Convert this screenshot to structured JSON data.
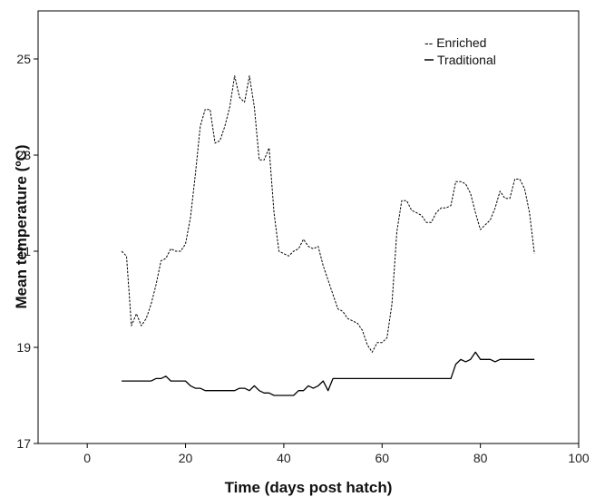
{
  "chart_data": {
    "type": "line",
    "xlabel": "Time (days post hatch)",
    "ylabel": "Mean temperature (ºC)",
    "xlim": [
      -10,
      100
    ],
    "ylim": [
      17,
      26
    ],
    "xticks": [
      0,
      20,
      40,
      60,
      80,
      100
    ],
    "yticks": [
      17,
      19,
      21,
      23,
      25
    ],
    "grid": false,
    "legend_position": "top-right",
    "series": [
      {
        "name": "Enriched",
        "legend_label": "-- Enriched",
        "style": "dashed",
        "color": "#000000",
        "x": [
          7,
          8,
          9,
          10,
          11,
          12,
          13,
          14,
          15,
          16,
          17,
          18,
          19,
          20,
          21,
          22,
          23,
          24,
          25,
          26,
          27,
          28,
          29,
          30,
          31,
          32,
          33,
          34,
          35,
          36,
          37,
          38,
          39,
          40,
          41,
          42,
          43,
          44,
          45,
          46,
          47,
          48,
          49,
          50,
          51,
          52,
          53,
          54,
          55,
          56,
          57,
          58,
          59,
          60,
          61,
          62,
          63,
          64,
          65,
          66,
          67,
          68,
          69,
          70,
          71,
          72,
          73,
          74,
          75,
          76,
          77,
          78,
          79,
          80,
          81,
          82,
          83,
          84,
          85,
          86,
          87,
          88,
          89,
          90,
          91
        ],
        "y": [
          21.0,
          20.9,
          19.45,
          19.7,
          19.45,
          19.6,
          19.9,
          20.3,
          20.8,
          20.85,
          21.05,
          21.0,
          21.0,
          21.15,
          21.7,
          22.6,
          23.6,
          23.95,
          23.95,
          23.25,
          23.3,
          23.6,
          24.0,
          24.65,
          24.2,
          24.1,
          24.65,
          24.0,
          22.9,
          22.9,
          23.15,
          21.8,
          21.0,
          20.95,
          20.9,
          21.0,
          21.05,
          21.25,
          21.1,
          21.05,
          21.1,
          20.7,
          20.4,
          20.1,
          19.8,
          19.75,
          19.6,
          19.55,
          19.5,
          19.35,
          19.05,
          18.9,
          19.1,
          19.1,
          19.2,
          19.9,
          21.4,
          22.05,
          22.05,
          21.85,
          21.8,
          21.75,
          21.6,
          21.6,
          21.8,
          21.9,
          21.9,
          21.95,
          22.45,
          22.45,
          22.4,
          22.2,
          21.8,
          21.45,
          21.55,
          21.65,
          21.9,
          22.25,
          22.1,
          22.1,
          22.5,
          22.5,
          22.3,
          21.8,
          20.95
        ]
      },
      {
        "name": "Traditional",
        "legend_label": "Traditional",
        "style": "solid",
        "color": "#000000",
        "x": [
          7,
          8,
          9,
          10,
          11,
          12,
          13,
          14,
          15,
          16,
          17,
          18,
          19,
          20,
          21,
          22,
          23,
          24,
          25,
          26,
          27,
          28,
          29,
          30,
          31,
          32,
          33,
          34,
          35,
          36,
          37,
          38,
          39,
          40,
          41,
          42,
          43,
          44,
          45,
          46,
          47,
          48,
          49,
          50,
          51,
          52,
          53,
          54,
          55,
          56,
          57,
          58,
          59,
          60,
          61,
          62,
          63,
          64,
          65,
          66,
          67,
          68,
          69,
          70,
          71,
          72,
          73,
          74,
          75,
          76,
          77,
          78,
          79,
          80,
          81,
          82,
          83,
          84,
          85,
          86,
          87,
          88,
          89,
          90,
          91
        ],
        "y": [
          18.3,
          18.3,
          18.3,
          18.3,
          18.3,
          18.3,
          18.3,
          18.35,
          18.35,
          18.4,
          18.3,
          18.3,
          18.3,
          18.3,
          18.2,
          18.15,
          18.15,
          18.1,
          18.1,
          18.1,
          18.1,
          18.1,
          18.1,
          18.1,
          18.15,
          18.15,
          18.1,
          18.2,
          18.1,
          18.05,
          18.05,
          18.0,
          18.0,
          18.0,
          18.0,
          18.0,
          18.1,
          18.1,
          18.2,
          18.15,
          18.2,
          18.3,
          18.1,
          18.35,
          18.35,
          18.35,
          18.35,
          18.35,
          18.35,
          18.35,
          18.35,
          18.35,
          18.35,
          18.35,
          18.35,
          18.35,
          18.35,
          18.35,
          18.35,
          18.35,
          18.35,
          18.35,
          18.35,
          18.35,
          18.35,
          18.35,
          18.35,
          18.35,
          18.65,
          18.75,
          18.7,
          18.75,
          18.9,
          18.75,
          18.75,
          18.75,
          18.7,
          18.75,
          18.75,
          18.75,
          18.75,
          18.75,
          18.75,
          18.75,
          18.75
        ]
      }
    ]
  }
}
